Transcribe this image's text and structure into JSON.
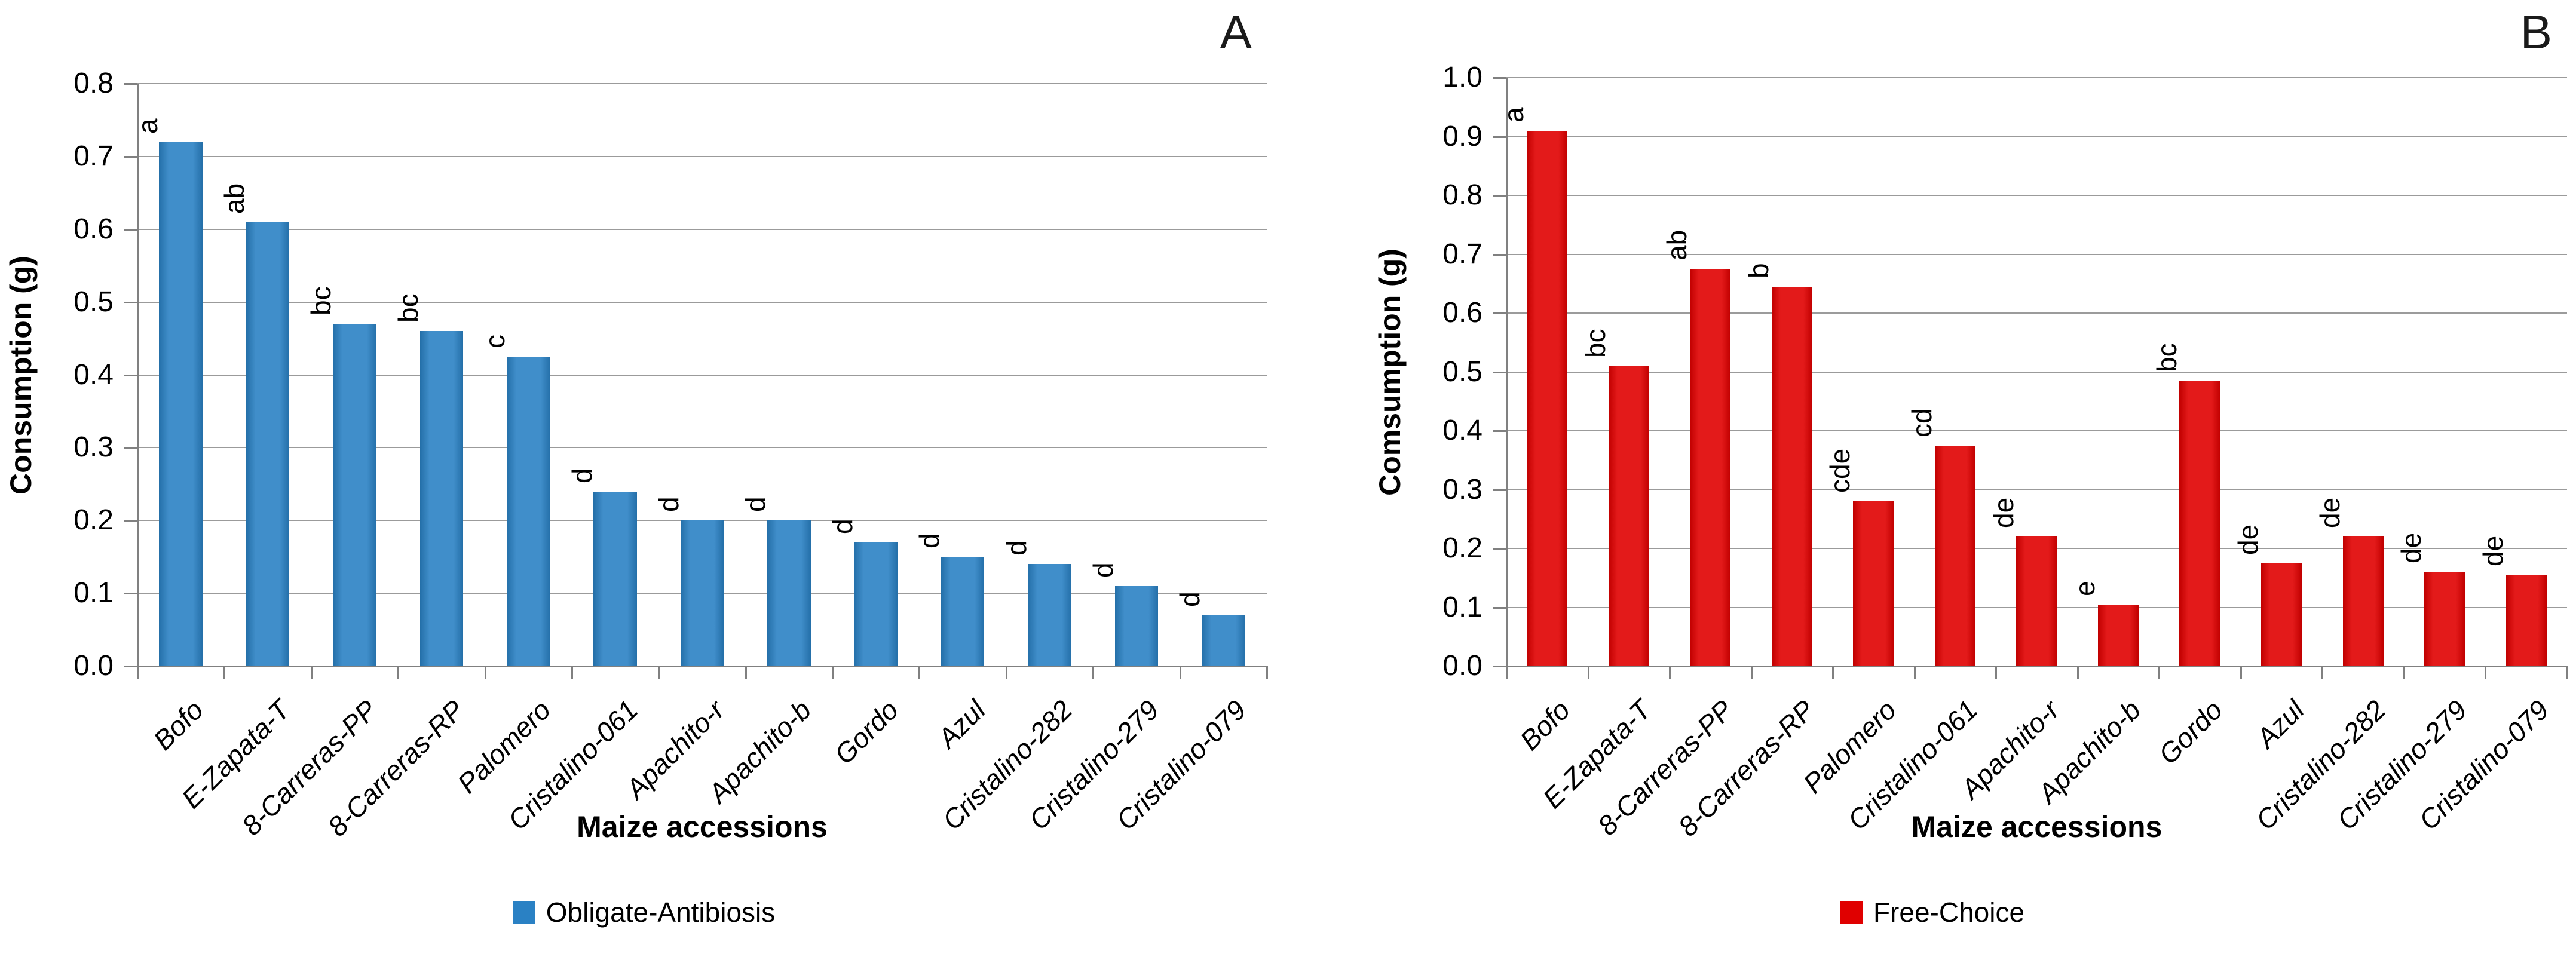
{
  "figure": {
    "background": "#ffffff",
    "grid_color": "#9b9b9b",
    "axis_color": "#808080"
  },
  "chart_data": [
    {
      "type": "bar",
      "panel_label": "A",
      "title": "",
      "xlabel": "Maize accessions",
      "ylabel": "Consumption (g)",
      "ylim": [
        0.0,
        0.8
      ],
      "ytick_step": 0.1,
      "ytick_decimals": 1,
      "grid": true,
      "legend_position": "bottom",
      "bar_color": "#2a81c4",
      "legend": [
        {
          "label": "Obligate-Antibiosis",
          "color": "#2a81c4"
        }
      ],
      "categories": [
        "Bofo",
        "E-Zapata-T",
        "8-Carreras-PP",
        "8-Carreras-RP",
        "Palomero",
        "Cristalino-061",
        "Apachito-r",
        "Apachito-b",
        "Gordo",
        "Azul",
        "Cristalino-282",
        "Cristalino-279",
        "Cristalino-079"
      ],
      "values": [
        0.72,
        0.61,
        0.47,
        0.46,
        0.425,
        0.24,
        0.2,
        0.2,
        0.17,
        0.15,
        0.14,
        0.11,
        0.07
      ],
      "sig_letters": [
        "a",
        "ab",
        "bc",
        "bc",
        "c",
        "d",
        "d",
        "d",
        "d",
        "d",
        "d",
        "d",
        "d"
      ]
    },
    {
      "type": "bar",
      "panel_label": "B",
      "title": "",
      "xlabel": "Maize accessions",
      "ylabel": "Comsumption (g)",
      "ylim": [
        0.0,
        1.0
      ],
      "ytick_step": 0.1,
      "ytick_decimals": 1,
      "grid": true,
      "legend_position": "bottom",
      "bar_color": "#e00000",
      "legend": [
        {
          "label": "Free-Choice",
          "color": "#e00000"
        }
      ],
      "categories": [
        "Bofo",
        "E-Zapata-T",
        "8-Carreras-PP",
        "8-Carreras-RP",
        "Palomero",
        "Cristalino-061",
        "Apachito-r",
        "Apachito-b",
        "Gordo",
        "Azul",
        "Cristalino-282",
        "Cristalino-279",
        "Cristalino-079"
      ],
      "values": [
        0.91,
        0.51,
        0.675,
        0.645,
        0.28,
        0.375,
        0.22,
        0.105,
        0.485,
        0.175,
        0.22,
        0.16,
        0.155
      ],
      "sig_letters": [
        "a",
        "bc",
        "ab",
        "b",
        "cde",
        "cd",
        "de",
        "e",
        "bc",
        "de",
        "de",
        "de",
        "de"
      ]
    }
  ]
}
